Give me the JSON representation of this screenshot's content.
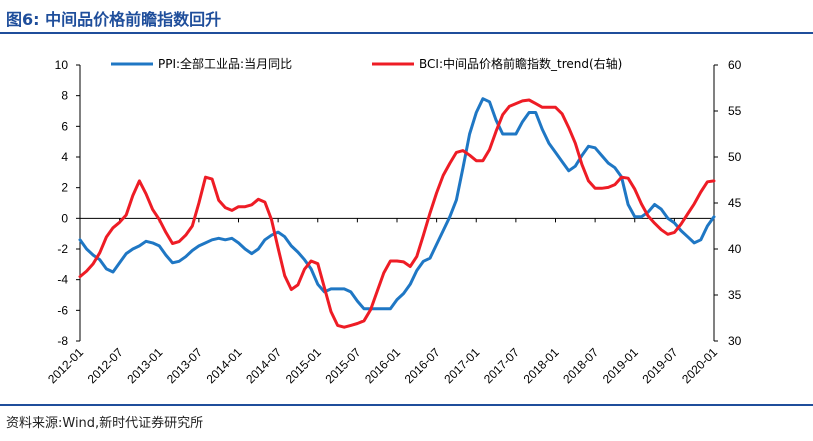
{
  "header": {
    "title": "图6:    中间品价格前瞻指数回升"
  },
  "footer": {
    "source": "资料来源:Wind,新时代证券研究所"
  },
  "colors": {
    "ppi": "#1f77c4",
    "bci": "#ee1c25",
    "accent": "#1f4e9b"
  },
  "chart_data": {
    "type": "line",
    "categories": [
      "2012-01",
      "2012-07",
      "2013-01",
      "2013-07",
      "2014-01",
      "2014-07",
      "2015-01",
      "2015-07",
      "2016-01",
      "2016-07",
      "2017-01",
      "2017-07",
      "2018-01",
      "2018-07",
      "2019-01",
      "2019-07",
      "2020-01"
    ],
    "left_axis": {
      "ylim": [
        -8,
        10
      ],
      "ticks": [
        "10",
        "8",
        "6",
        "4",
        "2",
        "0",
        "-2",
        "-4",
        "-6",
        "-8"
      ]
    },
    "right_axis": {
      "ylim": [
        30,
        60
      ],
      "ticks": [
        "60",
        "55",
        "50",
        "45",
        "40",
        "35",
        "30"
      ]
    },
    "legend": {
      "placement": "top"
    },
    "series": [
      {
        "name": "PPI:全部工业品:当月同比",
        "axis": "left",
        "x": [
          "2012-01",
          "2012-02",
          "2012-03",
          "2012-04",
          "2012-05",
          "2012-06",
          "2012-07",
          "2012-08",
          "2012-09",
          "2012-10",
          "2012-11",
          "2012-12",
          "2013-01",
          "2013-02",
          "2013-03",
          "2013-04",
          "2013-05",
          "2013-06",
          "2013-07",
          "2013-08",
          "2013-09",
          "2013-10",
          "2013-11",
          "2013-12",
          "2014-01",
          "2014-02",
          "2014-03",
          "2014-04",
          "2014-05",
          "2014-06",
          "2014-07",
          "2014-08",
          "2014-09",
          "2014-10",
          "2014-11",
          "2014-12",
          "2015-01",
          "2015-02",
          "2015-03",
          "2015-04",
          "2015-05",
          "2015-06",
          "2015-07",
          "2015-08",
          "2015-09",
          "2015-10",
          "2015-11",
          "2015-12",
          "2016-01",
          "2016-02",
          "2016-03",
          "2016-04",
          "2016-05",
          "2016-06",
          "2016-07",
          "2016-08",
          "2016-09",
          "2016-10",
          "2016-11",
          "2016-12",
          "2017-01",
          "2017-02",
          "2017-03",
          "2017-04",
          "2017-05",
          "2017-06",
          "2017-07",
          "2017-08",
          "2017-09",
          "2017-10",
          "2017-11",
          "2017-12",
          "2018-01",
          "2018-02",
          "2018-03",
          "2018-04",
          "2018-05",
          "2018-06",
          "2018-07",
          "2018-08",
          "2018-09",
          "2018-10",
          "2018-11",
          "2018-12",
          "2019-01",
          "2019-02",
          "2019-03",
          "2019-04",
          "2019-05",
          "2019-06",
          "2019-07",
          "2019-08",
          "2019-09",
          "2019-10",
          "2019-11",
          "2019-12",
          "2020-01"
        ],
        "values": [
          -1.4,
          -2.0,
          -2.4,
          -2.7,
          -3.3,
          -3.5,
          -2.9,
          -2.3,
          -2.0,
          -1.8,
          -1.5,
          -1.6,
          -1.8,
          -2.4,
          -2.9,
          -2.8,
          -2.5,
          -2.1,
          -1.8,
          -1.6,
          -1.4,
          -1.3,
          -1.4,
          -1.3,
          -1.6,
          -2.0,
          -2.3,
          -2.0,
          -1.4,
          -1.1,
          -0.9,
          -1.2,
          -1.8,
          -2.2,
          -2.7,
          -3.3,
          -4.3,
          -4.8,
          -4.6,
          -4.6,
          -4.6,
          -4.8,
          -5.4,
          -5.9,
          -5.9,
          -5.9,
          -5.9,
          -5.9,
          -5.3,
          -4.9,
          -4.3,
          -3.4,
          -2.8,
          -2.6,
          -1.7,
          -0.8,
          0.1,
          1.2,
          3.3,
          5.5,
          6.9,
          7.8,
          7.6,
          6.4,
          5.5,
          5.5,
          5.5,
          6.3,
          6.9,
          6.9,
          5.8,
          4.9,
          4.3,
          3.7,
          3.1,
          3.4,
          4.1,
          4.7,
          4.6,
          4.1,
          3.6,
          3.3,
          2.7,
          0.9,
          0.1,
          0.1,
          0.4,
          0.9,
          0.6,
          0.0,
          -0.3,
          -0.8,
          -1.2,
          -1.6,
          -1.4,
          -0.5,
          0.1
        ],
        "color": "#1f77c4"
      },
      {
        "name": "BCI:中间品价格前瞻指数_trend(右轴)",
        "axis": "right",
        "x": [
          "2012-01",
          "2012-02",
          "2012-03",
          "2012-04",
          "2012-05",
          "2012-06",
          "2012-07",
          "2012-08",
          "2012-09",
          "2012-10",
          "2012-11",
          "2012-12",
          "2013-01",
          "2013-02",
          "2013-03",
          "2013-04",
          "2013-05",
          "2013-06",
          "2013-07",
          "2013-08",
          "2013-09",
          "2013-10",
          "2013-11",
          "2013-12",
          "2014-01",
          "2014-02",
          "2014-03",
          "2014-04",
          "2014-05",
          "2014-06",
          "2014-07",
          "2014-08",
          "2014-09",
          "2014-10",
          "2014-11",
          "2014-12",
          "2015-01",
          "2015-02",
          "2015-03",
          "2015-04",
          "2015-05",
          "2015-06",
          "2015-07",
          "2015-08",
          "2015-09",
          "2015-10",
          "2015-11",
          "2015-12",
          "2016-01",
          "2016-02",
          "2016-03",
          "2016-04",
          "2016-05",
          "2016-06",
          "2016-07",
          "2016-08",
          "2016-09",
          "2016-10",
          "2016-11",
          "2016-12",
          "2017-01",
          "2017-02",
          "2017-03",
          "2017-04",
          "2017-05",
          "2017-06",
          "2017-07",
          "2017-08",
          "2017-09",
          "2017-10",
          "2017-11",
          "2017-12",
          "2018-01",
          "2018-02",
          "2018-03",
          "2018-04",
          "2018-05",
          "2018-06",
          "2018-07",
          "2018-08",
          "2018-09",
          "2018-10",
          "2018-11",
          "2018-12",
          "2019-01",
          "2019-02",
          "2019-03",
          "2019-04",
          "2019-05",
          "2019-06",
          "2019-07",
          "2019-08",
          "2019-09",
          "2019-10",
          "2019-11",
          "2019-12",
          "2020-01"
        ],
        "values": [
          37.0,
          37.6,
          38.4,
          39.6,
          41.3,
          42.3,
          42.9,
          43.7,
          45.8,
          47.4,
          46.0,
          44.3,
          43.2,
          41.8,
          40.6,
          40.8,
          41.5,
          42.5,
          45.0,
          47.8,
          47.6,
          45.3,
          44.5,
          44.2,
          44.6,
          44.6,
          44.8,
          45.4,
          45.1,
          43.2,
          40.1,
          37.1,
          35.6,
          36.1,
          37.8,
          38.7,
          38.4,
          35.8,
          33.2,
          31.7,
          31.5,
          31.7,
          31.9,
          32.2,
          33.4,
          35.4,
          37.4,
          38.7,
          38.7,
          38.6,
          38.1,
          39.2,
          41.5,
          43.9,
          46.1,
          48.0,
          49.3,
          50.5,
          50.7,
          50.2,
          49.6,
          49.6,
          50.8,
          52.8,
          54.6,
          55.5,
          55.8,
          56.1,
          56.2,
          55.8,
          55.4,
          55.4,
          55.4,
          54.7,
          53.2,
          51.5,
          49.2,
          47.4,
          46.6,
          46.6,
          46.7,
          47.0,
          47.8,
          47.7,
          46.5,
          44.9,
          43.6,
          42.8,
          42.1,
          41.6,
          41.8,
          42.7,
          43.8,
          44.9,
          46.2,
          47.3,
          47.4
        ],
        "color": "#ee1c25"
      }
    ]
  }
}
